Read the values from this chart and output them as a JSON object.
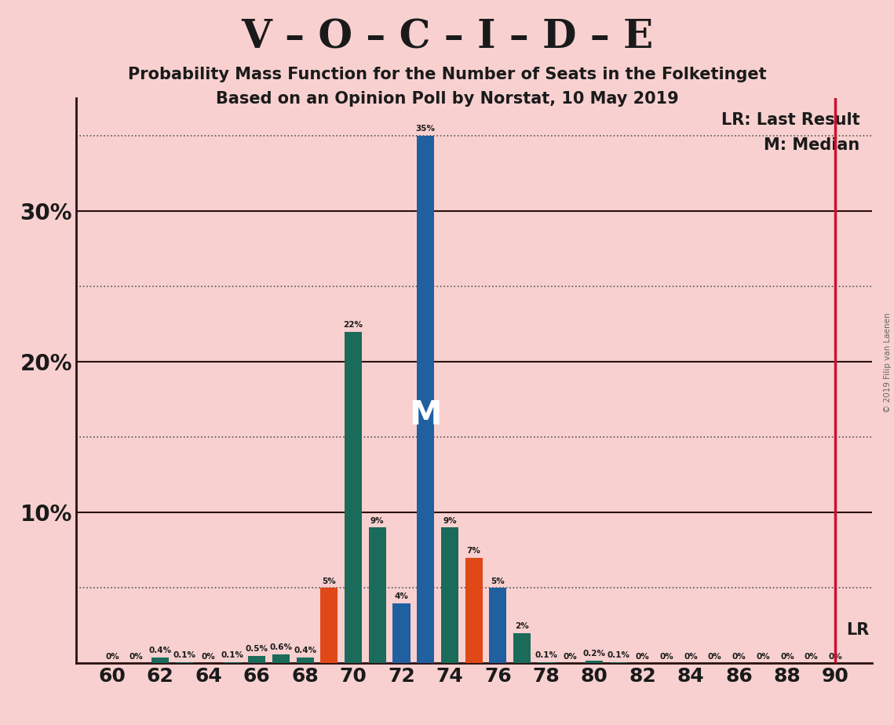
{
  "title_main": "V – O – C – I – D – E",
  "title_sub1": "Probability Mass Function for the Number of Seats in the Folketinget",
  "title_sub2": "Based on an Opinion Poll by Norstat, 10 May 2019",
  "watermark": "© 2019 Filip van Laenen",
  "seats": [
    60,
    61,
    62,
    63,
    64,
    65,
    66,
    67,
    68,
    69,
    70,
    71,
    72,
    73,
    74,
    75,
    76,
    77,
    78,
    79,
    80,
    81,
    82,
    83,
    84,
    85,
    86,
    87,
    88,
    89,
    90
  ],
  "probabilities": [
    0.0,
    0.0,
    0.4,
    0.1,
    0.0,
    0.1,
    0.5,
    0.6,
    0.4,
    5.0,
    22.0,
    9.0,
    4.0,
    35.0,
    9.0,
    7.0,
    5.0,
    2.0,
    0.1,
    0.0,
    0.2,
    0.1,
    0.0,
    0.0,
    0.0,
    0.0,
    0.0,
    0.0,
    0.0,
    0.0,
    0.0
  ],
  "bar_colors": [
    "#e04818",
    "#e04818",
    "#1a6b5a",
    "#1a6b5a",
    "#e04818",
    "#1a6b5a",
    "#1a6b5a",
    "#1a6b5a",
    "#1a6b5a",
    "#e04818",
    "#1a6b5a",
    "#1a6b5a",
    "#2060a0",
    "#2060a0",
    "#1a6b5a",
    "#e04818",
    "#2060a0",
    "#1a6b5a",
    "#1a6b5a",
    "#e04818",
    "#1a6b5a",
    "#1a6b5a",
    "#e04818",
    "#e04818",
    "#e04818",
    "#e04818",
    "#e04818",
    "#e04818",
    "#e04818",
    "#e04818",
    "#e04818"
  ],
  "median_seat": 73,
  "lr_seat": 90,
  "lr_level": 5.0,
  "background_color": "#f8d0d0",
  "solid_grid_color": "#2a1010",
  "dot_grid_color": "#555555",
  "lr_line_color": "#cc1030",
  "bar_width": 0.72,
  "xlim_left": 58.5,
  "xlim_right": 91.5,
  "ylim_bottom": 0,
  "ylim_top": 37.5,
  "major_yticks": [
    10,
    20,
    30
  ],
  "minor_yticks": [
    5,
    15,
    25,
    35
  ],
  "xticks": [
    60,
    62,
    64,
    66,
    68,
    70,
    72,
    74,
    76,
    78,
    80,
    82,
    84,
    86,
    88,
    90
  ]
}
